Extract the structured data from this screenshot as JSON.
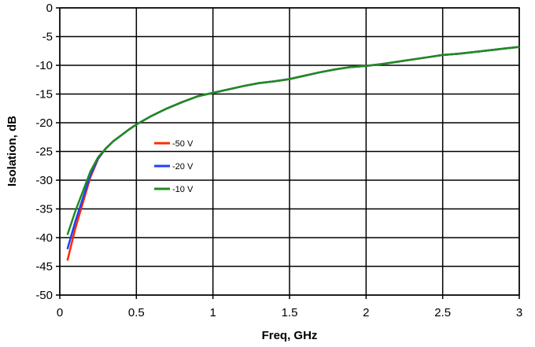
{
  "chart_data": {
    "type": "line",
    "xlabel": "Freq, GHz",
    "ylabel": "Isolation, dB",
    "xlim": [
      0,
      3
    ],
    "ylim": [
      -50,
      0
    ],
    "xticks": [
      0,
      0.5,
      1,
      1.5,
      2,
      2.5,
      3
    ],
    "xtick_labels": [
      "0",
      "0.5",
      "1",
      "1.5",
      "2",
      "2.5",
      "3"
    ],
    "yticks": [
      0,
      -5,
      -10,
      -15,
      -20,
      -25,
      -30,
      -35,
      -40,
      -45,
      -50
    ],
    "ytick_labels": [
      "0",
      "-5",
      "-10",
      "-15",
      "-20",
      "-25",
      "-30",
      "-35",
      "-40",
      "-45",
      "-50"
    ],
    "grid": true,
    "legend_position": "left-center",
    "series": [
      {
        "name": "-50 V",
        "color": "#ff2a00",
        "points": [
          [
            0.05,
            -44.0
          ],
          [
            0.1,
            -38.5
          ],
          [
            0.15,
            -34.0
          ],
          [
            0.2,
            -29.5
          ],
          [
            0.25,
            -26.3
          ],
          [
            0.3,
            -24.5
          ],
          [
            0.35,
            -23.2
          ],
          [
            0.4,
            -22.2
          ],
          [
            0.45,
            -21.2
          ],
          [
            0.5,
            -20.3
          ],
          [
            0.6,
            -18.8
          ],
          [
            0.7,
            -17.5
          ],
          [
            0.8,
            -16.4
          ],
          [
            0.9,
            -15.4
          ],
          [
            1.0,
            -14.8
          ],
          [
            1.1,
            -14.2
          ],
          [
            1.2,
            -13.6
          ],
          [
            1.3,
            -13.1
          ],
          [
            1.4,
            -12.8
          ],
          [
            1.5,
            -12.4
          ],
          [
            1.6,
            -11.8
          ],
          [
            1.7,
            -11.2
          ],
          [
            1.8,
            -10.7
          ],
          [
            1.9,
            -10.3
          ],
          [
            2.0,
            -10.1
          ],
          [
            2.1,
            -9.8
          ],
          [
            2.2,
            -9.4
          ],
          [
            2.3,
            -9.0
          ],
          [
            2.4,
            -8.6
          ],
          [
            2.5,
            -8.2
          ],
          [
            2.6,
            -8.0
          ],
          [
            2.7,
            -7.7
          ],
          [
            2.8,
            -7.4
          ],
          [
            2.9,
            -7.1
          ],
          [
            3.0,
            -6.8
          ]
        ]
      },
      {
        "name": "-20 V",
        "color": "#1f3fff",
        "points": [
          [
            0.05,
            -42.0
          ],
          [
            0.1,
            -37.3
          ],
          [
            0.15,
            -33.2
          ],
          [
            0.2,
            -29.1
          ],
          [
            0.25,
            -26.2
          ],
          [
            0.3,
            -24.5
          ],
          [
            0.35,
            -23.2
          ],
          [
            0.4,
            -22.2
          ],
          [
            0.45,
            -21.2
          ],
          [
            0.5,
            -20.3
          ],
          [
            0.6,
            -18.8
          ],
          [
            0.7,
            -17.5
          ],
          [
            0.8,
            -16.4
          ],
          [
            0.9,
            -15.4
          ],
          [
            1.0,
            -14.8
          ],
          [
            1.1,
            -14.2
          ],
          [
            1.2,
            -13.6
          ],
          [
            1.3,
            -13.1
          ],
          [
            1.4,
            -12.8
          ],
          [
            1.5,
            -12.4
          ],
          [
            1.6,
            -11.8
          ],
          [
            1.7,
            -11.2
          ],
          [
            1.8,
            -10.7
          ],
          [
            1.9,
            -10.3
          ],
          [
            2.0,
            -10.1
          ],
          [
            2.1,
            -9.8
          ],
          [
            2.2,
            -9.4
          ],
          [
            2.3,
            -9.0
          ],
          [
            2.4,
            -8.6
          ],
          [
            2.5,
            -8.2
          ],
          [
            2.6,
            -8.0
          ],
          [
            2.7,
            -7.7
          ],
          [
            2.8,
            -7.4
          ],
          [
            2.9,
            -7.1
          ],
          [
            3.0,
            -6.8
          ]
        ]
      },
      {
        "name": "-10 V",
        "color": "#1e8c1e",
        "points": [
          [
            0.05,
            -39.5
          ],
          [
            0.1,
            -35.5
          ],
          [
            0.15,
            -32.0
          ],
          [
            0.2,
            -28.5
          ],
          [
            0.25,
            -26.0
          ],
          [
            0.3,
            -24.5
          ],
          [
            0.35,
            -23.2
          ],
          [
            0.4,
            -22.2
          ],
          [
            0.45,
            -21.2
          ],
          [
            0.5,
            -20.3
          ],
          [
            0.6,
            -18.8
          ],
          [
            0.7,
            -17.5
          ],
          [
            0.8,
            -16.4
          ],
          [
            0.9,
            -15.4
          ],
          [
            1.0,
            -14.8
          ],
          [
            1.1,
            -14.2
          ],
          [
            1.2,
            -13.6
          ],
          [
            1.3,
            -13.1
          ],
          [
            1.4,
            -12.8
          ],
          [
            1.5,
            -12.4
          ],
          [
            1.6,
            -11.8
          ],
          [
            1.7,
            -11.2
          ],
          [
            1.8,
            -10.7
          ],
          [
            1.9,
            -10.3
          ],
          [
            2.0,
            -10.1
          ],
          [
            2.1,
            -9.8
          ],
          [
            2.2,
            -9.4
          ],
          [
            2.3,
            -9.0
          ],
          [
            2.4,
            -8.6
          ],
          [
            2.5,
            -8.2
          ],
          [
            2.6,
            -8.0
          ],
          [
            2.7,
            -7.7
          ],
          [
            2.8,
            -7.4
          ],
          [
            2.9,
            -7.1
          ],
          [
            3.0,
            -6.8
          ]
        ]
      }
    ]
  }
}
